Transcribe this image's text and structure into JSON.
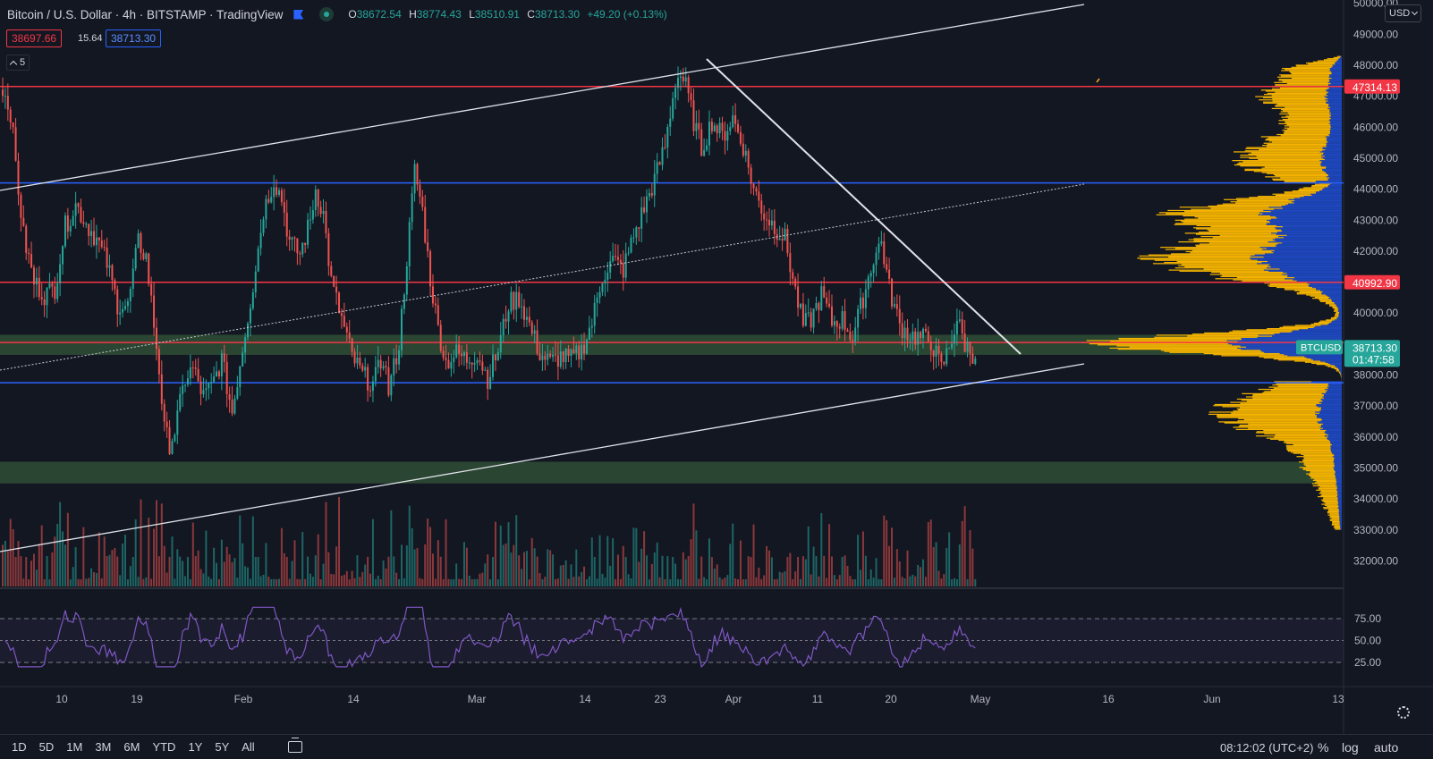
{
  "header": {
    "title": "Bitcoin / U.S. Dollar · 4h · BITSTAMP · TradingView",
    "ohlc": [
      {
        "k": "O",
        "v": "38672.54"
      },
      {
        "k": "H",
        "v": "38774.43"
      },
      {
        "k": "L",
        "v": "38510.91"
      },
      {
        "k": "C",
        "v": "38713.30"
      }
    ],
    "change": "+49.20 (+0.13%)",
    "bid": "38697.66",
    "spread": "15.64",
    "ask": "38713.30",
    "indicators_count": "5",
    "icons": [
      "flag-icon",
      "eye-icon",
      "chevron-up-icon"
    ]
  },
  "price_scale": {
    "currency": "USD",
    "ticks": [
      "50000.00",
      "49000.00",
      "48000.00",
      "47000.00",
      "46000.00",
      "45000.00",
      "44000.00",
      "43000.00",
      "42000.00",
      "41000.00",
      "40000.00",
      "39000.00",
      "38000.00",
      "37000.00",
      "36000.00",
      "35000.00",
      "34000.00",
      "33000.00",
      "32000.00"
    ],
    "labels": {
      "level_top": "47314.13",
      "level_mid": "40992.90",
      "symbol": "BTCUSD",
      "last_price": "38713.30",
      "countdown": "01:47:58"
    }
  },
  "rsi_scale": [
    "75.00",
    "50.00",
    "25.00"
  ],
  "time_axis": [
    "10",
    "19",
    "Feb",
    "14",
    "Mar",
    "14",
    "23",
    "Apr",
    "11",
    "20",
    "May",
    "16",
    "Jun",
    "13"
  ],
  "bottom_bar": {
    "ranges": [
      "1D",
      "5D",
      "1M",
      "3M",
      "6M",
      "YTD",
      "1Y",
      "5Y",
      "All"
    ],
    "clock": "08:12:02 (UTC+2)",
    "percent": "%",
    "log": "log",
    "auto": "auto"
  },
  "colors": {
    "background": "#131722",
    "up": "#26a69a",
    "down": "#ef5350",
    "red_line": "#f23645",
    "blue_line": "#2962ff",
    "vp_gold": "#f5b400",
    "vp_blue": "#1e48c0",
    "zone_green": "#2f4d34",
    "rsi_line": "#7e57c2"
  },
  "chart_data": {
    "type": "candlestick",
    "title": "Bitcoin / U.S. Dollar",
    "ylim": [
      31500,
      50000
    ],
    "horizontal_levels": [
      {
        "price": 47314.13,
        "color": "red"
      },
      {
        "price": 44200,
        "color": "blue"
      },
      {
        "price": 40992.9,
        "color": "red"
      },
      {
        "price": 39050,
        "color": "red"
      },
      {
        "price": 37750,
        "color": "blue"
      }
    ],
    "zones": [
      {
        "from": 38650,
        "to": 39300
      },
      {
        "from": 34500,
        "to": 35200
      }
    ],
    "close_path": [
      [
        0,
        47300
      ],
      [
        1,
        47000
      ],
      [
        3,
        46500
      ],
      [
        6,
        44000
      ],
      [
        8,
        42500
      ],
      [
        12,
        41000
      ],
      [
        16,
        40600
      ],
      [
        20,
        40800
      ],
      [
        24,
        42800
      ],
      [
        28,
        43500
      ],
      [
        32,
        42900
      ],
      [
        36,
        42400
      ],
      [
        40,
        41600
      ],
      [
        44,
        40300
      ],
      [
        48,
        40200
      ],
      [
        52,
        42300
      ],
      [
        55,
        41800
      ],
      [
        60,
        38200
      ],
      [
        62,
        36200
      ],
      [
        64,
        35800
      ],
      [
        66,
        36200
      ],
      [
        70,
        37900
      ],
      [
        73,
        38200
      ],
      [
        77,
        37300
      ],
      [
        80,
        37600
      ],
      [
        84,
        38500
      ],
      [
        88,
        36800
      ],
      [
        92,
        38900
      ],
      [
        96,
        40900
      ],
      [
        100,
        43300
      ],
      [
        104,
        44300
      ],
      [
        107,
        43700
      ],
      [
        110,
        42300
      ],
      [
        114,
        41900
      ],
      [
        118,
        43000
      ],
      [
        120,
        44000
      ],
      [
        123,
        43200
      ],
      [
        126,
        41000
      ],
      [
        130,
        39800
      ],
      [
        134,
        38600
      ],
      [
        138,
        38000
      ],
      [
        142,
        37700
      ],
      [
        146,
        38600
      ],
      [
        148,
        37500
      ],
      [
        152,
        39000
      ],
      [
        156,
        42700
      ],
      [
        158,
        44600
      ],
      [
        161,
        43300
      ],
      [
        164,
        41100
      ],
      [
        167,
        39500
      ],
      [
        170,
        38400
      ],
      [
        174,
        38700
      ],
      [
        178,
        38500
      ],
      [
        182,
        38700
      ],
      [
        186,
        37900
      ],
      [
        190,
        38800
      ],
      [
        194,
        40300
      ],
      [
        198,
        40500
      ],
      [
        202,
        39600
      ],
      [
        206,
        38700
      ],
      [
        210,
        38400
      ],
      [
        214,
        38600
      ],
      [
        218,
        38500
      ],
      [
        222,
        38800
      ],
      [
        226,
        39700
      ],
      [
        230,
        41200
      ],
      [
        234,
        41700
      ],
      [
        238,
        41400
      ],
      [
        242,
        42500
      ],
      [
        246,
        43400
      ],
      [
        250,
        44300
      ],
      [
        254,
        45400
      ],
      [
        258,
        47500
      ],
      [
        260,
        47700
      ],
      [
        262,
        47300
      ],
      [
        265,
        46200
      ],
      [
        268,
        45300
      ],
      [
        272,
        46200
      ],
      [
        276,
        45700
      ],
      [
        280,
        46300
      ],
      [
        284,
        45400
      ],
      [
        288,
        44000
      ],
      [
        292,
        43200
      ],
      [
        296,
        42800
      ],
      [
        300,
        42400
      ],
      [
        304,
        40700
      ],
      [
        307,
        39600
      ],
      [
        310,
        39800
      ],
      [
        314,
        40600
      ],
      [
        318,
        39700
      ],
      [
        322,
        39800
      ],
      [
        326,
        39200
      ],
      [
        330,
        40500
      ],
      [
        334,
        41800
      ],
      [
        337,
        42300
      ],
      [
        340,
        40800
      ],
      [
        344,
        39600
      ],
      [
        348,
        39300
      ],
      [
        352,
        39200
      ],
      [
        356,
        39100
      ],
      [
        360,
        38200
      ],
      [
        363,
        38900
      ],
      [
        366,
        39800
      ],
      [
        369,
        39000
      ],
      [
        372,
        38700
      ]
    ],
    "rsi_levels": [
      75,
      50,
      25
    ]
  }
}
